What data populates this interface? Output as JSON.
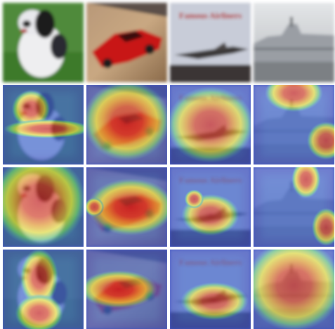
{
  "book_cover": {
    "title": "Famous Airliners"
  }
}
